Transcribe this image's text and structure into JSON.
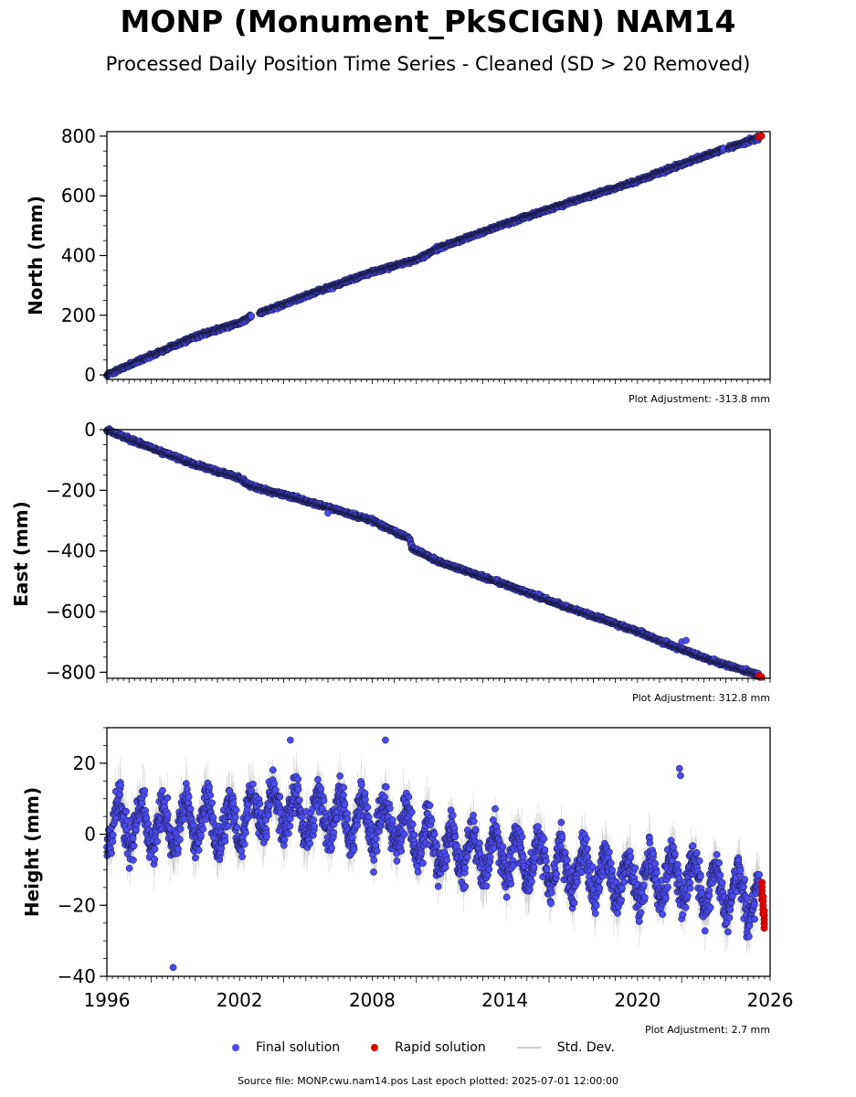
{
  "header": {
    "title": "MONP (Monument_PkSCIGN) NAM14",
    "subtitle": "Processed Daily Position Time Series - Cleaned (SD > 20 Removed)"
  },
  "legend": {
    "final_label": "Final solution",
    "rapid_label": "Rapid solution",
    "sd_label": "Std. Dev."
  },
  "footer": {
    "source": "Source file: MONP.cwu.nam14.pos  Last epoch plotted: 2025-07-01 12:00:00"
  },
  "colors": {
    "final": "#4b4bf0",
    "rapid": "#e00000",
    "stddev": "#bdbdbd",
    "final_edge": "#141432"
  },
  "chart_data": [
    {
      "type": "scatter",
      "ylabel": "North (mm)",
      "ylim": [
        -15,
        815
      ],
      "yticks": [
        0,
        200,
        400,
        600,
        800
      ],
      "ytick_labels": [
        "0",
        "200",
        "400",
        "600",
        "800"
      ],
      "adjustment": "Plot Adjustment: -313.8 mm",
      "xlim": [
        1996,
        2026
      ],
      "series": [
        {
          "name": "Final solution",
          "x": [
            1996.0,
            1998.0,
            2000.0,
            2002.0,
            2002.5,
            2005.0,
            2008.0,
            2010.0,
            2011.0,
            2012.3,
            2014.0,
            2017.0,
            2020.0,
            2022.0,
            2023.3,
            2024.4,
            2025.5
          ],
          "values": [
            0,
            65,
            128,
            175,
            195,
            265,
            345,
            385,
            425,
            460,
            505,
            580,
            650,
            705,
            740,
            768,
            795
          ]
        },
        {
          "name": "Rapid solution",
          "x": [
            2025.5,
            2025.6
          ],
          "values": [
            797,
            800
          ]
        }
      ],
      "gaps": [
        [
          2002.55,
          2002.9
        ],
        [
          2023.9,
          2024.1
        ]
      ]
    },
    {
      "type": "scatter",
      "ylabel": "East (mm)",
      "ylim": [
        -820,
        0
      ],
      "yticks": [
        0,
        -200,
        -400,
        -600,
        -800
      ],
      "ytick_labels": [
        "0",
        "−200",
        "−400",
        "−600",
        "−800"
      ],
      "adjustment": "Plot Adjustment: 312.8 mm",
      "xlim": [
        1996,
        2026
      ],
      "series": [
        {
          "name": "Final solution",
          "x": [
            1996.0,
            1998.0,
            2000.0,
            2002.0,
            2002.5,
            2005.0,
            2008.0,
            2009.7,
            2009.8,
            2011.0,
            2014.0,
            2017.0,
            2020.0,
            2022.0,
            2023.3,
            2024.4,
            2025.5
          ],
          "values": [
            0,
            -60,
            -115,
            -160,
            -185,
            -235,
            -300,
            -360,
            -390,
            -435,
            -510,
            -590,
            -665,
            -725,
            -760,
            -785,
            -810
          ]
        },
        {
          "name": "Rapid solution",
          "x": [
            2025.5,
            2025.6
          ],
          "values": [
            -812,
            -816
          ]
        }
      ],
      "outliers": [
        [
          2022.0,
          -700
        ],
        [
          2022.2,
          -695
        ],
        [
          2006.0,
          -275
        ]
      ]
    },
    {
      "type": "scatter",
      "ylabel": "Height (mm)",
      "ylim": [
        -40,
        30
      ],
      "yticks": [
        20,
        0,
        -20,
        -40
      ],
      "ytick_labels": [
        "20",
        "0",
        "−20",
        "−40"
      ],
      "adjustment": "Plot Adjustment: 2.7 mm",
      "xlim": [
        1996,
        2026
      ],
      "xticks": [
        1996,
        2002,
        2008,
        2014,
        2020,
        2026
      ],
      "xtick_labels": [
        "1996",
        "2002",
        "2008",
        "2014",
        "2020",
        "2026"
      ],
      "series": [
        {
          "name": "Final solution",
          "x": [
            1996.0,
            1998.0,
            2000.0,
            2002.0,
            2003.0,
            2006.0,
            2009.0,
            2011.0,
            2014.0,
            2017.0,
            2020.0,
            2022.0,
            2024.0,
            2025.5
          ],
          "values": [
            3,
            2,
            4,
            3,
            7,
            5,
            3,
            -4,
            -6,
            -10,
            -13,
            -12,
            -16,
            -18
          ]
        },
        {
          "name": "Rapid solution",
          "x": [
            2025.55,
            2025.6,
            2025.65
          ],
          "values": [
            -16,
            -20,
            -24
          ]
        }
      ],
      "seasonal_amplitude_mm": 6,
      "noise_sd_mm": 4.5,
      "outliers": [
        [
          1999.0,
          -37.5
        ],
        [
          2004.3,
          26.5
        ],
        [
          2008.6,
          26.5
        ],
        [
          2021.9,
          18.5
        ],
        [
          2021.95,
          16.5
        ]
      ]
    }
  ]
}
